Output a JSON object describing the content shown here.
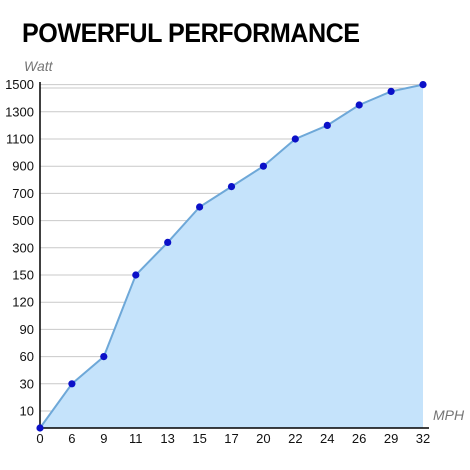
{
  "chart_data": {
    "type": "area",
    "title": "POWERFUL PERFORMANCE",
    "ylabel": "Watt",
    "xlabel": "MPH",
    "categories": [
      "0",
      "6",
      "9",
      "11",
      "13",
      "15",
      "17",
      "20",
      "22",
      "24",
      "26",
      "29",
      "32"
    ],
    "y_ticks": [
      "10",
      "30",
      "60",
      "90",
      "120",
      "150",
      "300",
      "500",
      "700",
      "900",
      "1100",
      "1300",
      "1500"
    ],
    "y_scale": "non-uniform (tick labels evenly spaced)",
    "values": [
      0,
      30,
      60,
      150,
      340,
      600,
      750,
      900,
      1100,
      1200,
      1350,
      1450,
      1500
    ],
    "grid": true,
    "colors": {
      "line": "#6ea8d8",
      "fill": "#c5e3fb",
      "marker": "#0b10c8",
      "grid": "#c9c9c9",
      "axis": "#000000"
    }
  }
}
